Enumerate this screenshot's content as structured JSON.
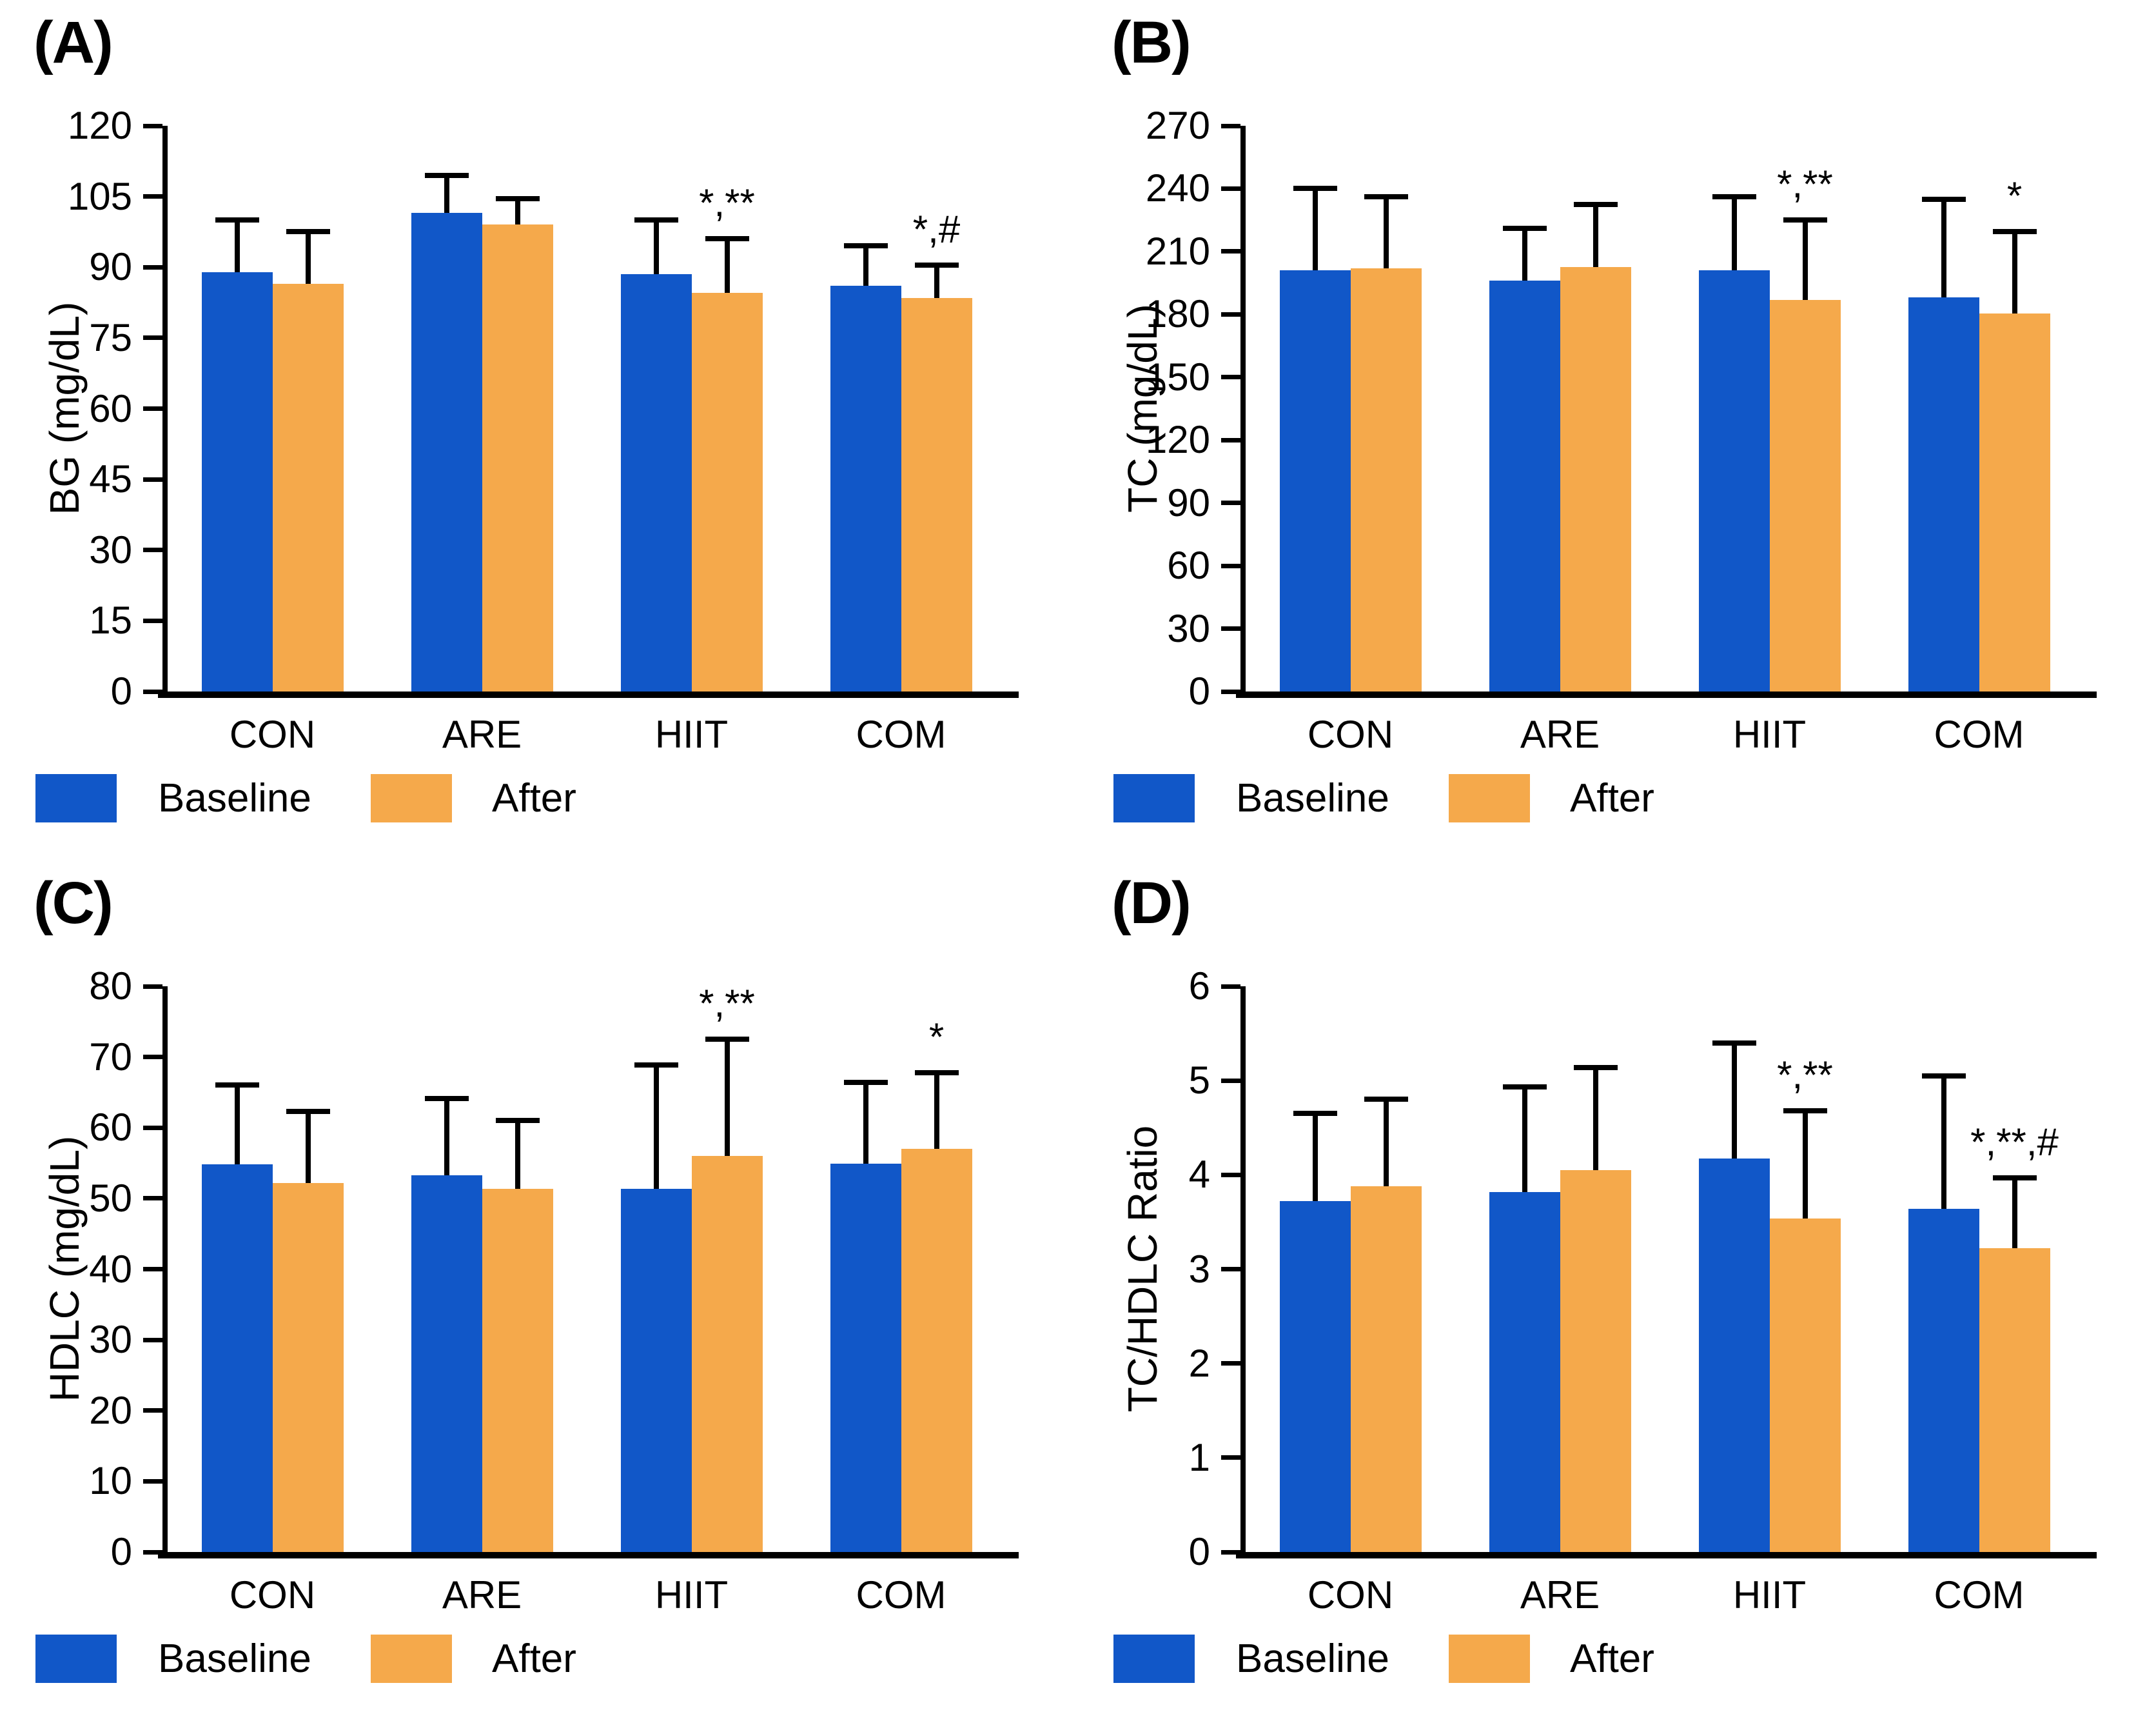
{
  "figure": {
    "background": "#FFFFFF",
    "text_color": "#000000",
    "axis_color": "#000000",
    "colors": {
      "baseline": "#1157C8",
      "after": "#F5A94B"
    },
    "legend": {
      "baseline_label": "Baseline",
      "after_label": "After",
      "position": "below-left"
    }
  },
  "chart_data": [
    {
      "type": "bar",
      "panel_label": "(A)",
      "ylabel": "BG (mg/dL)",
      "ylim": [
        0,
        120
      ],
      "yticks": [
        0,
        15,
        30,
        45,
        60,
        75,
        90,
        105,
        120
      ],
      "grid": false,
      "categories": [
        "CON",
        "ARE",
        "HIIT",
        "COM"
      ],
      "series": [
        {
          "name": "Baseline",
          "color": "#1157C8",
          "values": [
            89,
            101.5,
            88.5,
            86
          ],
          "sd": [
            11,
            8,
            11.5,
            8.5
          ]
        },
        {
          "name": "After",
          "color": "#F5A94B",
          "values": [
            86.5,
            99,
            84.5,
            83.5
          ],
          "sd": [
            11,
            5.5,
            11.5,
            7
          ]
        }
      ],
      "annotations": [
        {
          "category": "HIIT",
          "series": "After",
          "text": "*,**"
        },
        {
          "category": "COM",
          "series": "After",
          "text": "*,#"
        }
      ]
    },
    {
      "type": "bar",
      "panel_label": "(B)",
      "ylabel": "TC (mg/dL)",
      "ylim": [
        0,
        270
      ],
      "yticks": [
        0,
        30,
        60,
        90,
        120,
        150,
        180,
        210,
        240,
        270
      ],
      "grid": false,
      "categories": [
        "CON",
        "ARE",
        "HIIT",
        "COM"
      ],
      "series": [
        {
          "name": "Baseline",
          "color": "#1157C8",
          "values": [
            201,
            196,
            201,
            188
          ],
          "sd": [
            39,
            25,
            35,
            47
          ]
        },
        {
          "name": "After",
          "color": "#F5A94B",
          "values": [
            202,
            202.5,
            187,
            180.5
          ],
          "sd": [
            34,
            30,
            38,
            39
          ]
        }
      ],
      "annotations": [
        {
          "category": "HIIT",
          "series": "After",
          "text": "*,**"
        },
        {
          "category": "COM",
          "series": "After",
          "text": "*"
        }
      ]
    },
    {
      "type": "bar",
      "panel_label": "(C)",
      "ylabel": "HDLC (mg/dL)",
      "ylim": [
        0,
        80
      ],
      "yticks": [
        0,
        10,
        20,
        30,
        40,
        50,
        60,
        70,
        80
      ],
      "grid": false,
      "categories": [
        "CON",
        "ARE",
        "HIIT",
        "COM"
      ],
      "series": [
        {
          "name": "Baseline",
          "color": "#1157C8",
          "values": [
            54.8,
            53.3,
            51.4,
            54.9
          ],
          "sd": [
            11.2,
            10.8,
            17.5,
            11.5
          ]
        },
        {
          "name": "After",
          "color": "#F5A94B",
          "values": [
            52.2,
            51.4,
            56,
            57
          ],
          "sd": [
            10.1,
            9.6,
            16.5,
            10.8
          ]
        }
      ],
      "annotations": [
        {
          "category": "HIIT",
          "series": "After",
          "text": "*,**"
        },
        {
          "category": "COM",
          "series": "After",
          "text": "*"
        }
      ]
    },
    {
      "type": "bar",
      "panel_label": "(D)",
      "ylabel": "TC/HDLC Ratio",
      "ylim": [
        0,
        6
      ],
      "yticks": [
        0,
        1,
        2,
        3,
        4,
        5,
        6
      ],
      "grid": false,
      "categories": [
        "CON",
        "ARE",
        "HIIT",
        "COM"
      ],
      "series": [
        {
          "name": "Baseline",
          "color": "#1157C8",
          "values": [
            3.72,
            3.82,
            4.17,
            3.64
          ],
          "sd": [
            0.93,
            1.11,
            1.23,
            1.41
          ]
        },
        {
          "name": "After",
          "color": "#F5A94B",
          "values": [
            3.88,
            4.05,
            3.54,
            3.22
          ],
          "sd": [
            0.92,
            1.09,
            1.14,
            0.75
          ]
        }
      ],
      "annotations": [
        {
          "category": "HIIT",
          "series": "After",
          "text": "*,**"
        },
        {
          "category": "COM",
          "series": "After",
          "text": "*,**,#"
        }
      ]
    }
  ]
}
